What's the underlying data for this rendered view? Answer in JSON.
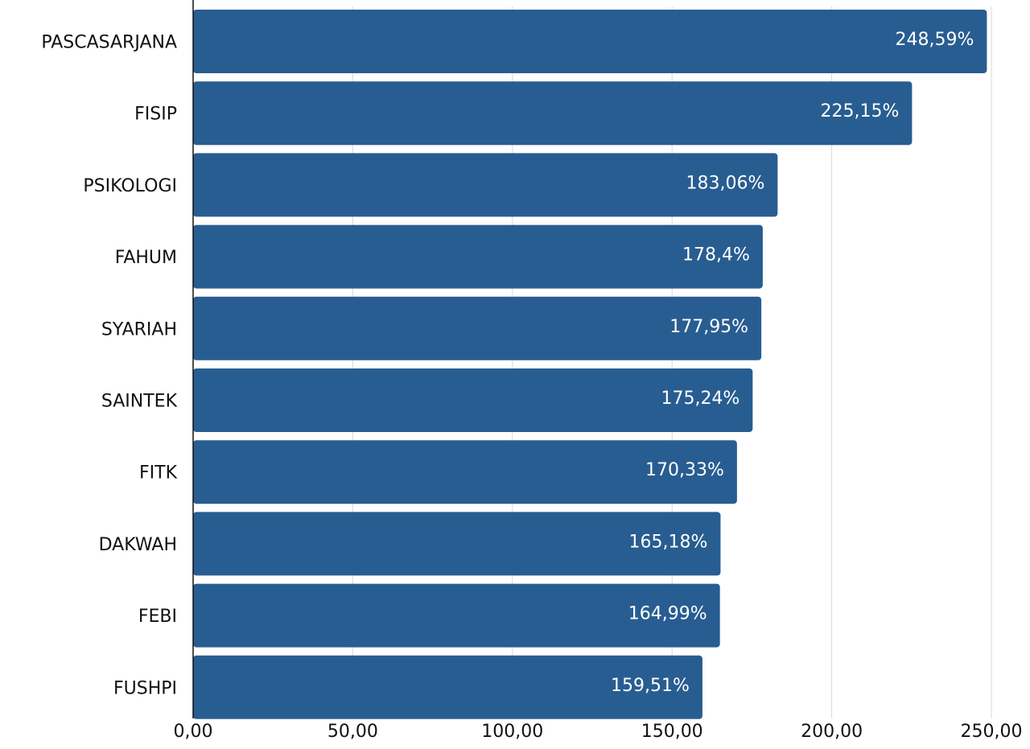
{
  "chart_data": {
    "type": "bar",
    "orientation": "horizontal",
    "title": "",
    "xlabel": "",
    "ylabel": "",
    "categories": [
      "PASCASARJANA",
      "FISIP",
      "PSIKOLOGI",
      "FAHUM",
      "SYARIAH",
      "SAINTEK",
      "FITK",
      "DAKWAH",
      "FEBI",
      "FUSHPI"
    ],
    "values": [
      248.59,
      225.15,
      183.06,
      178.4,
      177.95,
      175.24,
      170.33,
      165.18,
      164.99,
      159.51
    ],
    "data_labels": [
      "248,59%",
      "225,15%",
      "183,06%",
      "178,4%",
      "177,95%",
      "175,24%",
      "170,33%",
      "165,18%",
      "164,99%",
      "159,51%"
    ],
    "xlim": [
      0,
      250
    ],
    "x_ticks": [
      0,
      50,
      100,
      150,
      200,
      250
    ],
    "x_tick_labels": [
      "0,00",
      "50,00",
      "100,00",
      "150,00",
      "200,00",
      "250,00"
    ],
    "grid": true,
    "legend": "none",
    "bar_color": "#285d91"
  }
}
